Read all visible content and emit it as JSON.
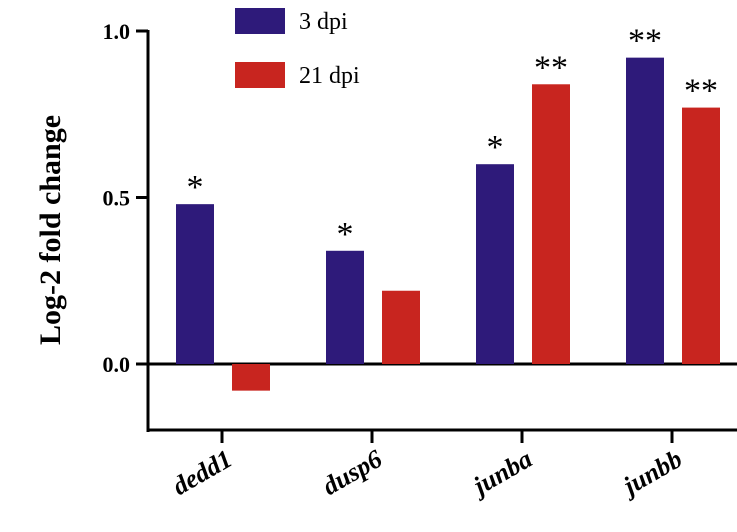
{
  "chart_data": {
    "type": "bar",
    "title": "",
    "xlabel": "",
    "ylabel": "Log-2 fold change",
    "ylim": [
      -0.2,
      1.0
    ],
    "yticks": [
      "0.0",
      "0.5",
      "1.0"
    ],
    "grid": false,
    "legend_position": "top",
    "categories": [
      "dedd1",
      "dusp6",
      "junba",
      "junbb"
    ],
    "series": [
      {
        "name": "3 dpi",
        "color": "#2e1a7a",
        "values": [
          0.48,
          0.34,
          0.6,
          0.92
        ],
        "significance": [
          "*",
          "*",
          "*",
          "**"
        ]
      },
      {
        "name": "21 dpi",
        "color": "#c8251f",
        "values": [
          -0.08,
          0.22,
          0.84,
          0.77
        ],
        "significance": [
          "",
          "",
          "**",
          "**"
        ]
      }
    ]
  }
}
